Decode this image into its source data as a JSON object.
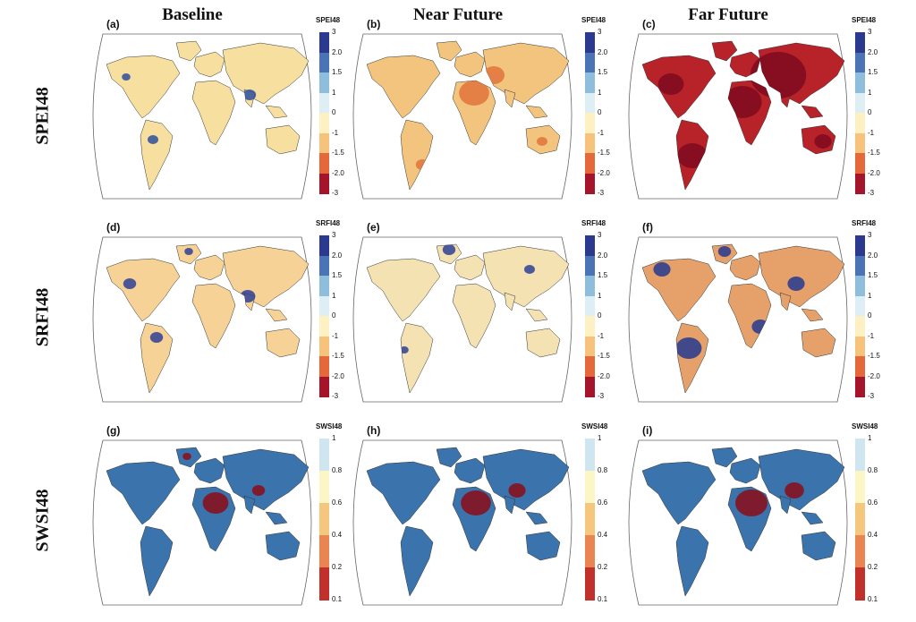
{
  "columns": [
    "Baseline",
    "Near Future",
    "Far Future"
  ],
  "rows": [
    "SPEI48",
    "SRFI48",
    "SWSI48"
  ],
  "panels": [
    {
      "letter": "(a)",
      "row": 0,
      "col": 0,
      "index": "SPEI48",
      "scenario": "Baseline"
    },
    {
      "letter": "(b)",
      "row": 0,
      "col": 1,
      "index": "SPEI48",
      "scenario": "Near Future"
    },
    {
      "letter": "(c)",
      "row": 0,
      "col": 2,
      "index": "SPEI48",
      "scenario": "Far Future"
    },
    {
      "letter": "(d)",
      "row": 1,
      "col": 0,
      "index": "SRFI48",
      "scenario": "Baseline"
    },
    {
      "letter": "(e)",
      "row": 1,
      "col": 1,
      "index": "SRFI48",
      "scenario": "Near Future"
    },
    {
      "letter": "(f)",
      "row": 1,
      "col": 2,
      "index": "SRFI48",
      "scenario": "Far Future"
    },
    {
      "letter": "(g)",
      "row": 2,
      "col": 0,
      "index": "SWSI48",
      "scenario": "Baseline"
    },
    {
      "letter": "(h)",
      "row": 2,
      "col": 1,
      "index": "SWSI48",
      "scenario": "Near Future"
    },
    {
      "letter": "(i)",
      "row": 2,
      "col": 2,
      "index": "SWSI48",
      "scenario": "Far Future"
    }
  ],
  "colorbars": {
    "drought": {
      "ticks": [
        "3",
        "2.0",
        "1.5",
        "1",
        "0",
        "-1",
        "-1.5",
        "-2.0",
        "-3"
      ],
      "colors": [
        "#2b3a8f",
        "#4a74b5",
        "#8fbddc",
        "#ddeef4",
        "#fdf0c2",
        "#f6c27c",
        "#e4683a",
        "#a5142a"
      ]
    },
    "swsi": {
      "ticks": [
        "1",
        "0.8",
        "0.6",
        "0.4",
        "0.2",
        "0.1"
      ],
      "colors": [
        "#cfe6f1",
        "#fcf5c6",
        "#f4c77d",
        "#ea8451",
        "#c2302c"
      ]
    }
  },
  "land_colors": {
    "(a)": "#f7dfa0",
    "(b)": "#f3c47e",
    "(c)": "#b8232a",
    "(d)": "#f6d296",
    "(e)": "#f4e2b3",
    "(f)": "#e6a06a",
    "(g)": "#3b73ad",
    "(h)": "#3b73ad",
    "(i)": "#3b73ad"
  },
  "accent_colors": {
    "(a)": "#2d4f9c",
    "(b)": "#e0743c",
    "(c)": "#7d0b1e",
    "(d)": "#2e3f95",
    "(e)": "#2e3f95",
    "(f)": "#253a8f",
    "(g)": "#8b0d17",
    "(h)": "#8b0d17",
    "(i)": "#8b0d17"
  }
}
